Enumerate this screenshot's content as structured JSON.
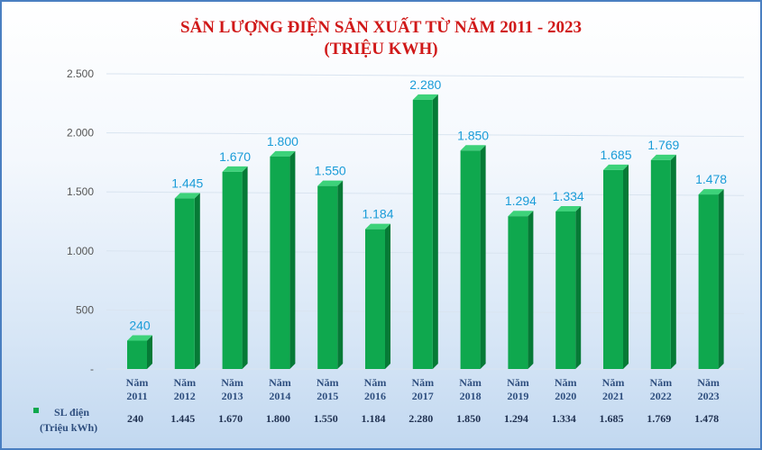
{
  "title_line1": "SẢN LƯỢNG ĐIỆN SẢN XUẤT TỪ NĂM 2011 - 2023",
  "title_line2": "(TRIỆU  KWH)",
  "colors": {
    "bar": "#0fa84e",
    "bar_side": "#067a36",
    "bar_top": "#3dd27a",
    "title": "#d01818",
    "data_label": "#1a9cd8"
  },
  "legend": {
    "label_line1": "SL điện",
    "label_line2": "(Triệu kWh)"
  },
  "chart_data": {
    "type": "bar",
    "ylim": [
      0,
      2500
    ],
    "y_ticks": [
      0,
      500,
      1000,
      1500,
      2000,
      2500
    ],
    "y_tick_labels": [
      "-",
      "500",
      "1.000",
      "1.500",
      "2.000",
      "2.500"
    ],
    "grid": true,
    "categories": [
      [
        "Năm",
        "2011"
      ],
      [
        "Năm",
        "2012"
      ],
      [
        "Năm",
        "2013"
      ],
      [
        "Năm",
        "2014"
      ],
      [
        "Năm",
        "2015"
      ],
      [
        "Năm",
        "2016"
      ],
      [
        "Năm",
        "2017"
      ],
      [
        "Năm",
        "2018"
      ],
      [
        "Năm",
        "2019"
      ],
      [
        "Năm",
        "2020"
      ],
      [
        "Năm",
        "2021"
      ],
      [
        "Năm",
        "2022"
      ],
      [
        "Năm",
        "2023"
      ]
    ],
    "series": [
      {
        "name": "SL điện (Triệu kWh)",
        "values": [
          240,
          1445,
          1670,
          1800,
          1550,
          1184,
          2280,
          1850,
          1294,
          1334,
          1685,
          1769,
          1478
        ],
        "labels": [
          "240",
          "1.445",
          "1.670",
          "1.800",
          "1.550",
          "1.184",
          "2.280",
          "1.850",
          "1.294",
          "1.334",
          "1.685",
          "1.769",
          "1.478"
        ]
      }
    ],
    "data_table": true
  }
}
